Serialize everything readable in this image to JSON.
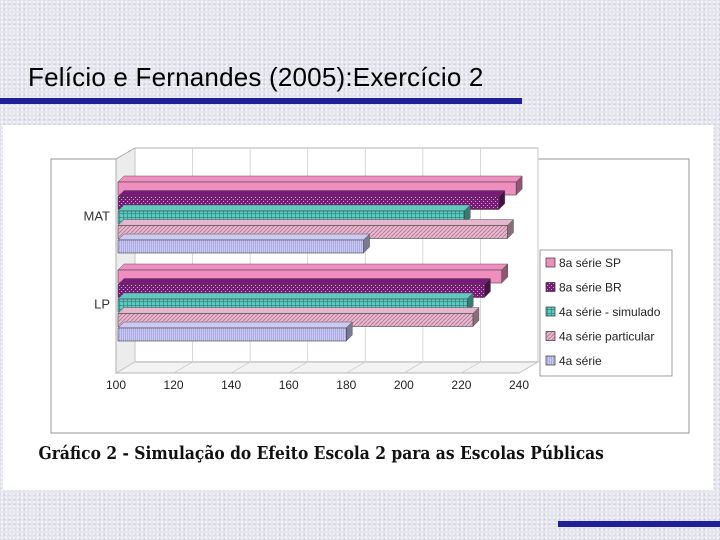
{
  "slide": {
    "title": "Felício e Fernandes (2005):Exercício 2"
  },
  "figure": {
    "caption": "Gráfico 2 - Simulação do Efeito Escola 2 para as Escolas Públicas"
  },
  "colors": {
    "title_rule": "#1f1f99",
    "series": [
      "#f08fbf",
      "#7a1a78",
      "#5fc9c0",
      "#e6b6cc",
      "#c9c9f2"
    ]
  },
  "chart_data": {
    "type": "bar",
    "orientation": "horizontal",
    "style": "3d",
    "categories": [
      "MAT",
      "LP"
    ],
    "series": [
      {
        "name": "8a série SP",
        "values": [
          239,
          234
        ]
      },
      {
        "name": "8a série BR",
        "values": [
          233,
          228
        ]
      },
      {
        "name": "4a série - simulado",
        "values": [
          221,
          222
        ]
      },
      {
        "name": "4a série particular",
        "values": [
          236,
          224
        ]
      },
      {
        "name": "4a série",
        "values": [
          186,
          180
        ]
      }
    ],
    "xlim": [
      100,
      240
    ],
    "xticks": [
      100,
      120,
      140,
      160,
      180,
      200,
      220,
      240
    ],
    "grid": true,
    "legend_position": "right"
  }
}
